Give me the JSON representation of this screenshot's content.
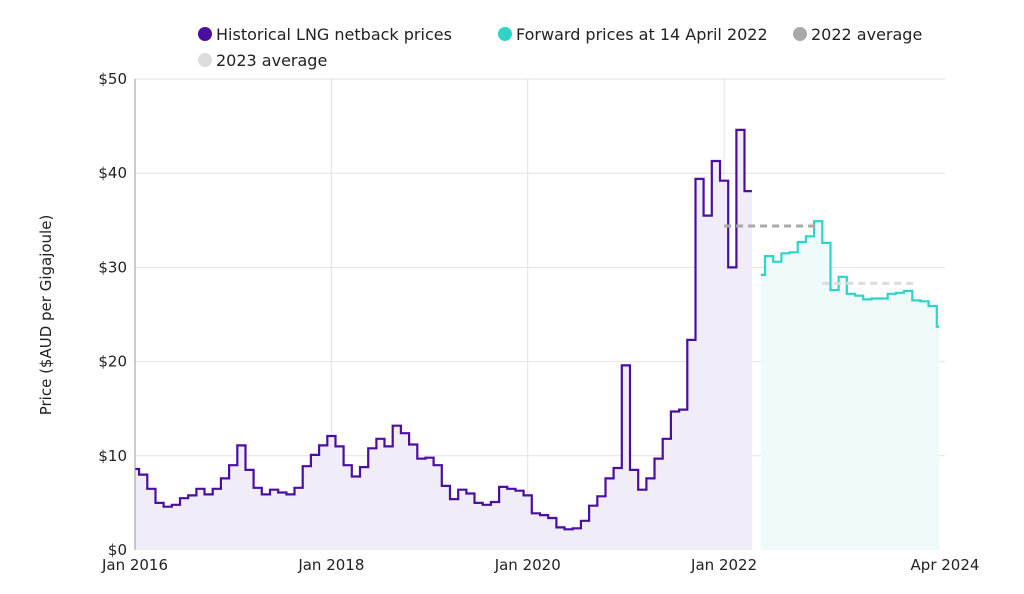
{
  "chart_data": {
    "type": "line",
    "title": "",
    "xlabel": "",
    "ylabel": "Price ($AUD per Gigajoule)",
    "ylim": [
      0,
      50
    ],
    "xlim": [
      "2016-01",
      "2024-04"
    ],
    "grid": true,
    "legend_position": "top",
    "y_ticks": [
      "$0",
      "$10",
      "$20",
      "$30",
      "$40",
      "$50"
    ],
    "y_tick_values": [
      0,
      10,
      20,
      30,
      40,
      50
    ],
    "x_ticks": [
      "Jan 2016",
      "Jan 2018",
      "Jan 2020",
      "Jan 2022",
      "Apr 2024"
    ],
    "x_tick_values": [
      "2016-01",
      "2018-01",
      "2020-01",
      "2022-01",
      "2024-04"
    ],
    "series": [
      {
        "name": "Historical LNG netback prices",
        "color": "#4a0ea0",
        "fill": "#f0ecf8",
        "style": "step",
        "x": [
          "2016-01",
          "2016-02",
          "2016-03",
          "2016-04",
          "2016-05",
          "2016-06",
          "2016-07",
          "2016-08",
          "2016-09",
          "2016-10",
          "2016-11",
          "2016-12",
          "2017-01",
          "2017-02",
          "2017-03",
          "2017-04",
          "2017-05",
          "2017-06",
          "2017-07",
          "2017-08",
          "2017-09",
          "2017-10",
          "2017-11",
          "2017-12",
          "2018-01",
          "2018-02",
          "2018-03",
          "2018-04",
          "2018-05",
          "2018-06",
          "2018-07",
          "2018-08",
          "2018-09",
          "2018-10",
          "2018-11",
          "2018-12",
          "2019-01",
          "2019-02",
          "2019-03",
          "2019-04",
          "2019-05",
          "2019-06",
          "2019-07",
          "2019-08",
          "2019-09",
          "2019-10",
          "2019-11",
          "2019-12",
          "2020-01",
          "2020-02",
          "2020-03",
          "2020-04",
          "2020-05",
          "2020-06",
          "2020-07",
          "2020-08",
          "2020-09",
          "2020-10",
          "2020-11",
          "2020-12",
          "2021-01",
          "2021-02",
          "2021-03",
          "2021-04",
          "2021-05",
          "2021-06",
          "2021-07",
          "2021-08",
          "2021-09",
          "2021-10",
          "2021-11",
          "2021-12",
          "2022-01",
          "2022-02",
          "2022-03",
          "2022-04"
        ],
        "values": [
          8.6,
          8.0,
          6.5,
          5.0,
          4.6,
          4.8,
          5.5,
          5.8,
          6.5,
          5.9,
          6.5,
          7.6,
          9.0,
          11.1,
          8.5,
          6.6,
          5.9,
          6.4,
          6.1,
          5.9,
          6.6,
          8.9,
          10.1,
          11.1,
          12.1,
          11.0,
          9.0,
          7.8,
          8.8,
          10.8,
          11.8,
          11.0,
          13.2,
          12.4,
          11.2,
          9.7,
          9.8,
          9.0,
          6.8,
          5.4,
          6.4,
          6.0,
          5.0,
          4.8,
          5.1,
          6.7,
          6.5,
          6.3,
          5.8,
          3.9,
          3.7,
          3.4,
          2.4,
          2.2,
          2.3,
          3.1,
          4.7,
          5.7,
          7.6,
          8.7,
          19.6,
          8.5,
          6.4,
          7.6,
          9.7,
          11.8,
          14.7,
          14.9,
          22.3,
          39.4,
          35.5,
          41.3,
          39.2,
          30.0,
          44.6,
          38.1
        ]
      },
      {
        "name": "Forward prices at 14 April 2022",
        "color": "#2dd4c8",
        "fill": "#eefbfa",
        "style": "step",
        "x": [
          "2022-05",
          "2022-06",
          "2022-07",
          "2022-08",
          "2022-09",
          "2022-10",
          "2022-11",
          "2022-12",
          "2023-01",
          "2023-02",
          "2023-03",
          "2023-04",
          "2023-05",
          "2023-06",
          "2023-07",
          "2023-08",
          "2023-09",
          "2023-10",
          "2023-11",
          "2023-12",
          "2024-01",
          "2024-02",
          "2024-03"
        ],
        "values": [
          29.2,
          31.2,
          30.6,
          31.5,
          31.6,
          32.7,
          33.3,
          34.9,
          32.6,
          27.6,
          29.0,
          27.2,
          27.0,
          26.6,
          26.7,
          26.7,
          27.2,
          27.3,
          27.5,
          26.5,
          26.4,
          25.9,
          23.7
        ]
      },
      {
        "name": "2022 average",
        "color": "#a9a9a9",
        "style": "dashed",
        "x": [
          "2022-01",
          "2022-12"
        ],
        "values": [
          34.4,
          34.4
        ]
      },
      {
        "name": "2023 average",
        "color": "#dcdcdc",
        "style": "dashed",
        "x": [
          "2023-01",
          "2023-12"
        ],
        "values": [
          28.3,
          28.3
        ]
      }
    ]
  }
}
